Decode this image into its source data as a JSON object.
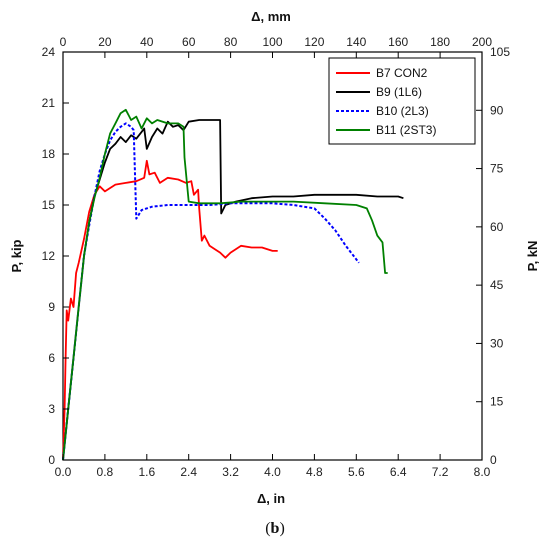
{
  "caption": {
    "open": "(",
    "letter": "b",
    "close": ")"
  },
  "chart_data": {
    "type": "line",
    "xlabel": "Δ, in",
    "ylabel": "P, kip",
    "x2label": "Δ, mm",
    "y2label": "P, kN",
    "xlim": [
      0,
      8
    ],
    "ylim": [
      0,
      24
    ],
    "x2lim": [
      0,
      200
    ],
    "y2lim": [
      0,
      105
    ],
    "x_ticks": [
      "0.0",
      "0.8",
      "1.6",
      "2.4",
      "3.2",
      "4.0",
      "4.8",
      "5.6",
      "6.4",
      "7.2",
      "8.0"
    ],
    "y_ticks": [
      "0",
      "3",
      "6",
      "9",
      "12",
      "15",
      "18",
      "21",
      "24"
    ],
    "x2_ticks": [
      "0",
      "20",
      "40",
      "60",
      "80",
      "100",
      "120",
      "140",
      "160",
      "180",
      "200"
    ],
    "y2_ticks": [
      "0",
      "15",
      "30",
      "45",
      "60",
      "75",
      "90",
      "105"
    ],
    "legend_position": "top-right",
    "series": [
      {
        "name": "B7 CON2",
        "color": "#ff0000",
        "dash": "solid",
        "points": [
          [
            0,
            0
          ],
          [
            0.03,
            3
          ],
          [
            0.05,
            6
          ],
          [
            0.07,
            8.8
          ],
          [
            0.1,
            8.2
          ],
          [
            0.15,
            9.5
          ],
          [
            0.2,
            9
          ],
          [
            0.25,
            11
          ],
          [
            0.3,
            11.6
          ],
          [
            0.4,
            13
          ],
          [
            0.5,
            14.6
          ],
          [
            0.6,
            15.6
          ],
          [
            0.7,
            16.1
          ],
          [
            0.8,
            15.8
          ],
          [
            1.0,
            16.2
          ],
          [
            1.2,
            16.3
          ],
          [
            1.4,
            16.4
          ],
          [
            1.55,
            16.6
          ],
          [
            1.6,
            17.6
          ],
          [
            1.65,
            16.8
          ],
          [
            1.75,
            16.9
          ],
          [
            1.85,
            16.3
          ],
          [
            2.0,
            16.6
          ],
          [
            2.2,
            16.5
          ],
          [
            2.35,
            16.3
          ],
          [
            2.45,
            16.4
          ],
          [
            2.5,
            15.6
          ],
          [
            2.58,
            15.9
          ],
          [
            2.6,
            14.8
          ],
          [
            2.65,
            12.9
          ],
          [
            2.7,
            13.2
          ],
          [
            2.8,
            12.6
          ],
          [
            2.9,
            12.4
          ],
          [
            3.0,
            12.2
          ],
          [
            3.1,
            11.9
          ],
          [
            3.2,
            12.2
          ],
          [
            3.4,
            12.6
          ],
          [
            3.6,
            12.5
          ],
          [
            3.8,
            12.5
          ],
          [
            4.0,
            12.3
          ],
          [
            4.1,
            12.3
          ]
        ]
      },
      {
        "name": "B9 (1L6)",
        "color": "#000000",
        "dash": "solid",
        "points": [
          [
            0,
            0
          ],
          [
            0.1,
            3
          ],
          [
            0.2,
            6
          ],
          [
            0.3,
            9
          ],
          [
            0.4,
            12
          ],
          [
            0.5,
            14
          ],
          [
            0.6,
            15.5
          ],
          [
            0.7,
            16.5
          ],
          [
            0.8,
            17.5
          ],
          [
            0.9,
            18.3
          ],
          [
            1.0,
            18.6
          ],
          [
            1.1,
            19
          ],
          [
            1.2,
            18.7
          ],
          [
            1.3,
            19.1
          ],
          [
            1.4,
            18.9
          ],
          [
            1.5,
            19.3
          ],
          [
            1.55,
            19.5
          ],
          [
            1.6,
            18.3
          ],
          [
            1.7,
            19
          ],
          [
            1.8,
            19.5
          ],
          [
            1.9,
            19.2
          ],
          [
            2.0,
            19.9
          ],
          [
            2.1,
            19.6
          ],
          [
            2.2,
            19.7
          ],
          [
            2.3,
            19.4
          ],
          [
            2.4,
            19.9
          ],
          [
            2.6,
            20
          ],
          [
            2.8,
            20
          ],
          [
            3.0,
            20
          ],
          [
            3.02,
            14.5
          ],
          [
            3.1,
            15
          ],
          [
            3.3,
            15.2
          ],
          [
            3.6,
            15.4
          ],
          [
            4.0,
            15.5
          ],
          [
            4.4,
            15.5
          ],
          [
            4.8,
            15.6
          ],
          [
            5.2,
            15.6
          ],
          [
            5.6,
            15.6
          ],
          [
            6.0,
            15.5
          ],
          [
            6.4,
            15.5
          ],
          [
            6.5,
            15.4
          ]
        ]
      },
      {
        "name": "B10 (2L3)",
        "color": "#0000ff",
        "dash": "dotted",
        "points": [
          [
            0,
            0
          ],
          [
            0.1,
            3
          ],
          [
            0.2,
            6
          ],
          [
            0.3,
            9
          ],
          [
            0.4,
            12
          ],
          [
            0.5,
            13.8
          ],
          [
            0.6,
            15.5
          ],
          [
            0.7,
            17
          ],
          [
            0.8,
            18
          ],
          [
            0.9,
            18.8
          ],
          [
            1.0,
            19.3
          ],
          [
            1.1,
            19.6
          ],
          [
            1.2,
            19.8
          ],
          [
            1.3,
            19.6
          ],
          [
            1.35,
            19.4
          ],
          [
            1.4,
            14.2
          ],
          [
            1.5,
            14.7
          ],
          [
            1.7,
            14.9
          ],
          [
            2.0,
            15
          ],
          [
            2.4,
            15
          ],
          [
            2.8,
            15
          ],
          [
            3.2,
            15.1
          ],
          [
            3.6,
            15.1
          ],
          [
            4.0,
            15.1
          ],
          [
            4.4,
            15
          ],
          [
            4.8,
            14.8
          ],
          [
            5.0,
            14.2
          ],
          [
            5.2,
            13.5
          ],
          [
            5.4,
            12.6
          ],
          [
            5.6,
            11.8
          ],
          [
            5.65,
            11.6
          ]
        ]
      },
      {
        "name": "B11 (2ST3)",
        "color": "#008000",
        "dash": "solid",
        "points": [
          [
            0,
            0
          ],
          [
            0.1,
            3
          ],
          [
            0.2,
            6
          ],
          [
            0.3,
            9
          ],
          [
            0.4,
            12
          ],
          [
            0.5,
            14
          ],
          [
            0.6,
            15.4
          ],
          [
            0.7,
            16.6
          ],
          [
            0.8,
            18
          ],
          [
            0.9,
            19.2
          ],
          [
            1.0,
            19.8
          ],
          [
            1.1,
            20.4
          ],
          [
            1.2,
            20.6
          ],
          [
            1.3,
            20
          ],
          [
            1.4,
            20.2
          ],
          [
            1.5,
            19.5
          ],
          [
            1.6,
            20.1
          ],
          [
            1.7,
            19.8
          ],
          [
            1.8,
            20
          ],
          [
            2.0,
            19.8
          ],
          [
            2.2,
            19.8
          ],
          [
            2.3,
            19.6
          ],
          [
            2.32,
            17.8
          ],
          [
            2.4,
            15.2
          ],
          [
            2.6,
            15.1
          ],
          [
            3.0,
            15.1
          ],
          [
            3.4,
            15.2
          ],
          [
            3.8,
            15.2
          ],
          [
            4.4,
            15.2
          ],
          [
            5.0,
            15.1
          ],
          [
            5.6,
            15.0
          ],
          [
            5.8,
            14.8
          ],
          [
            5.9,
            14.1
          ],
          [
            6.0,
            13.2
          ],
          [
            6.1,
            12.8
          ],
          [
            6.15,
            11
          ],
          [
            6.2,
            11
          ]
        ]
      }
    ]
  }
}
